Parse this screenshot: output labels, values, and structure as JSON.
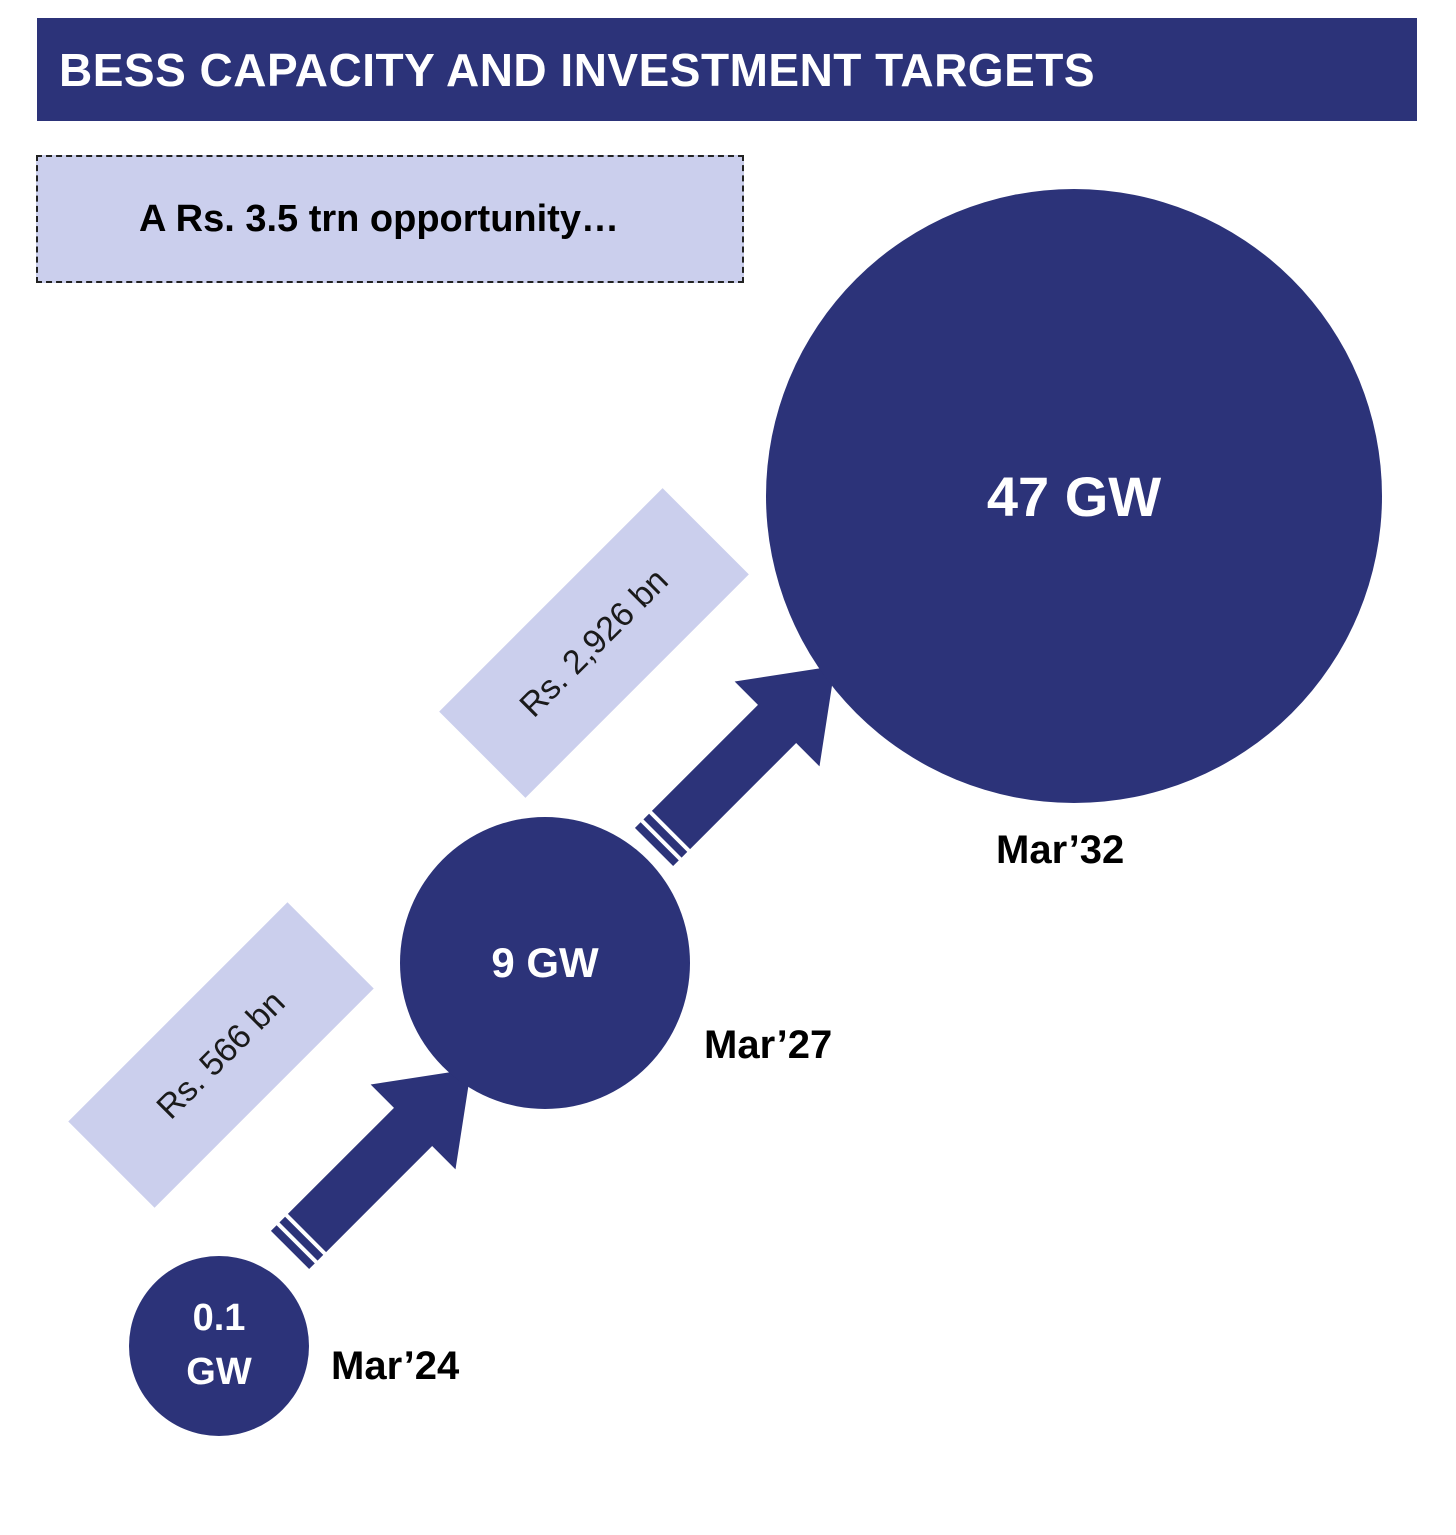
{
  "header": {
    "title": "BESS CAPACITY AND INVESTMENT TARGETS"
  },
  "subtitle": {
    "text": "A Rs. 3.5 trn opportunity…"
  },
  "milestones": [
    {
      "capacity": "0.1 GW",
      "date": "Mar’24"
    },
    {
      "capacity": "9 GW",
      "date": "Mar’27"
    },
    {
      "capacity": "47 GW",
      "date": "Mar’32"
    }
  ],
  "investments": [
    {
      "label": "Rs. 566 bn"
    },
    {
      "label": "Rs. 2,926 bn"
    }
  ],
  "colors": {
    "primary": "#2c3379",
    "light": "#cbcfed",
    "text": "#000000",
    "background": "#ffffff"
  }
}
